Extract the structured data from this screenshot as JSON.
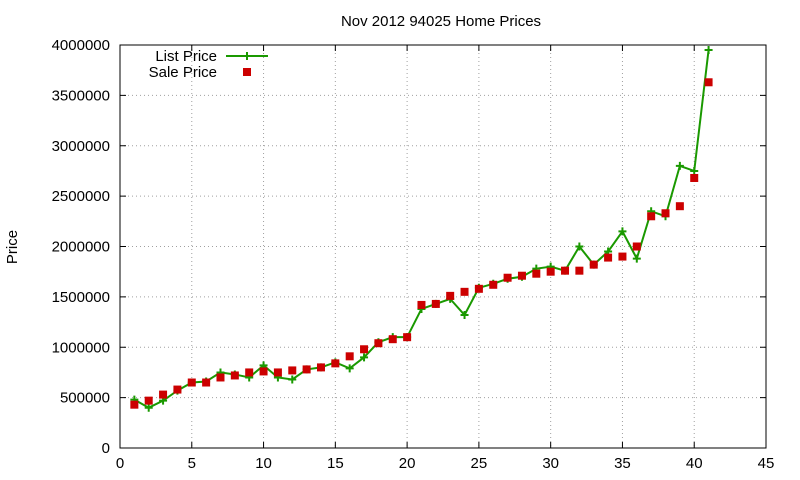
{
  "chart_data": {
    "type": "line",
    "title": "Nov 2012 94025 Home Prices",
    "xlabel": "",
    "ylabel": "Price",
    "xlim": [
      0,
      45
    ],
    "ylim": [
      0,
      4000000
    ],
    "xticks": [
      0,
      5,
      10,
      15,
      20,
      25,
      30,
      35,
      40,
      45
    ],
    "yticks": [
      0,
      500000,
      1000000,
      1500000,
      2000000,
      2500000,
      3000000,
      3500000,
      4000000
    ],
    "grid": true,
    "legend_position": "top-left",
    "series": [
      {
        "name": "List Price",
        "style": "line-with-plus-markers",
        "color": "#1a9900",
        "x": [
          1,
          2,
          3,
          4,
          5,
          6,
          7,
          8,
          9,
          10,
          11,
          12,
          13,
          14,
          15,
          16,
          17,
          18,
          19,
          20,
          21,
          22,
          23,
          24,
          25,
          26,
          27,
          28,
          29,
          30,
          31,
          32,
          33,
          34,
          35,
          36,
          37,
          38,
          39,
          40,
          41
        ],
        "values": [
          480000,
          400000,
          470000,
          570000,
          650000,
          660000,
          750000,
          730000,
          700000,
          820000,
          700000,
          680000,
          780000,
          800000,
          850000,
          790000,
          900000,
          1050000,
          1100000,
          1100000,
          1380000,
          1430000,
          1480000,
          1320000,
          1590000,
          1630000,
          1680000,
          1700000,
          1780000,
          1800000,
          1760000,
          2000000,
          1820000,
          1950000,
          2150000,
          1880000,
          2350000,
          2300000,
          2800000,
          2750000,
          3950000
        ]
      },
      {
        "name": "Sale Price",
        "style": "square-markers",
        "color": "#cc0000",
        "x": [
          1,
          2,
          3,
          4,
          5,
          6,
          7,
          8,
          9,
          10,
          11,
          12,
          13,
          14,
          15,
          16,
          17,
          18,
          19,
          20,
          21,
          22,
          23,
          24,
          25,
          26,
          27,
          28,
          29,
          30,
          31,
          32,
          33,
          34,
          35,
          36,
          37,
          38,
          39,
          40,
          41
        ],
        "values": [
          430000,
          470000,
          530000,
          580000,
          650000,
          650000,
          700000,
          720000,
          750000,
          760000,
          750000,
          770000,
          780000,
          800000,
          840000,
          910000,
          980000,
          1040000,
          1080000,
          1100000,
          1420000,
          1430000,
          1510000,
          1550000,
          1580000,
          1620000,
          1690000,
          1710000,
          1730000,
          1750000,
          1760000,
          1760000,
          1820000,
          1890000,
          1900000,
          2000000,
          2300000,
          2330000,
          2400000,
          2680000,
          3630000
        ]
      }
    ]
  }
}
